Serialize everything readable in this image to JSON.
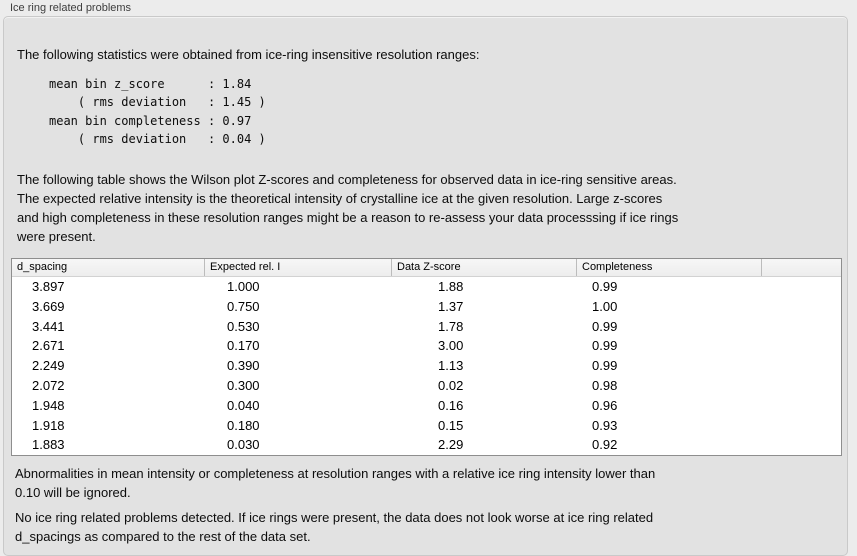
{
  "panel": {
    "title": "Ice ring related problems"
  },
  "intro": "The following statistics were obtained from ice-ring insensitive resolution ranges:",
  "stats_block": "mean bin z_score      : 1.84\n    ( rms deviation   : 1.45 )\nmean bin completeness : 0.97\n    ( rms deviation   : 0.04 )",
  "stats": {
    "mean_bin_z_score": "1.84",
    "z_score_rms_deviation": "1.45",
    "mean_bin_completeness": "0.97",
    "completeness_rms_deviation": "0.04"
  },
  "table_description": "The following table shows the Wilson plot Z-scores and completeness for observed data in ice-ring sensitive areas.\nThe expected relative intensity is the theoretical intensity of crystalline ice at the given resolution. Large z-scores\nand high completeness in these resolution ranges might be a reason to re-assess your data processsing if ice rings\nwere present.",
  "table": {
    "columns": [
      "d_spacing",
      "Expected rel. I",
      "Data Z-score",
      "Completeness",
      ""
    ],
    "rows": [
      [
        "3.897",
        "1.000",
        "1.88",
        "0.99"
      ],
      [
        "3.669",
        "0.750",
        "1.37",
        "1.00"
      ],
      [
        "3.441",
        "0.530",
        "1.78",
        "0.99"
      ],
      [
        "2.671",
        "0.170",
        "3.00",
        "0.99"
      ],
      [
        "2.249",
        "0.390",
        "1.13",
        "0.99"
      ],
      [
        "2.072",
        "0.300",
        "0.02",
        "0.98"
      ],
      [
        "1.948",
        "0.040",
        "0.16",
        "0.96"
      ],
      [
        "1.918",
        "0.180",
        "0.15",
        "0.93"
      ],
      [
        "1.883",
        "0.030",
        "2.29",
        "0.92"
      ]
    ]
  },
  "notes": {
    "ignore_rule": "Abnormalities in mean intensity or completeness at resolution ranges with a relative ice ring intensity lower than\n0.10 will be ignored.",
    "conclusion": "No ice ring related problems detected. If ice rings were present, the data does not look worse at ice ring related\nd_spacings as compared to the rest of the data set."
  },
  "colors": {
    "page_bg": "#ececec",
    "panel_bg": "#e2e2e2",
    "panel_border": "#c9c9c9",
    "table_border": "#8e8e8e",
    "table_header_bg": "#f2f2f2",
    "text": "#0c0c0c"
  }
}
